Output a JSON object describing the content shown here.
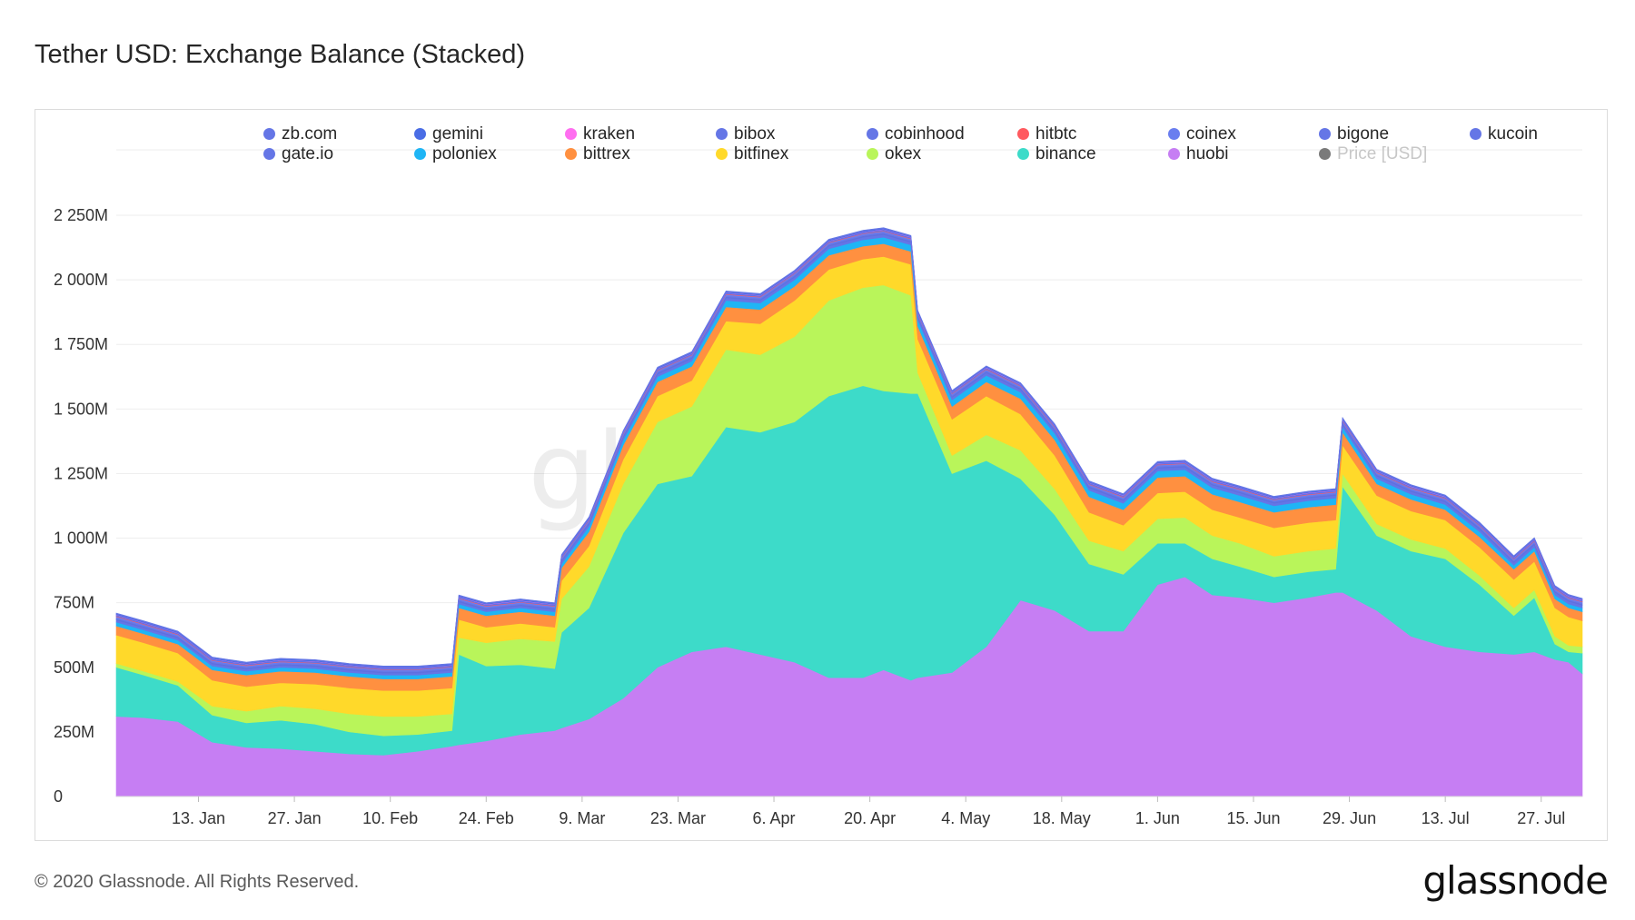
{
  "page": {
    "title": "Tether USD: Exchange Balance (Stacked)",
    "footer": "© 2020 Glassnode. All Rights Reserved.",
    "brand": "glassnode",
    "watermark": "glassnode"
  },
  "legend": [
    {
      "name": "zb.com",
      "color": "#6576e6"
    },
    {
      "name": "gemini",
      "color": "#4a6de5"
    },
    {
      "name": "kraken",
      "color": "#ff6ef0"
    },
    {
      "name": "bibox",
      "color": "#6576e6"
    },
    {
      "name": "cobinhood",
      "color": "#6576e6"
    },
    {
      "name": "hitbtc",
      "color": "#ff5a5f"
    },
    {
      "name": "coinex",
      "color": "#6a7eef"
    },
    {
      "name": "bigone",
      "color": "#6576e6"
    },
    {
      "name": "kucoin",
      "color": "#6576e6"
    },
    {
      "name": "gate.io",
      "color": "#6576e6"
    },
    {
      "name": "poloniex",
      "color": "#1fb5f5"
    },
    {
      "name": "bittrex",
      "color": "#ff9040"
    },
    {
      "name": "bitfinex",
      "color": "#ffd92a"
    },
    {
      "name": "okex",
      "color": "#b9f55a"
    },
    {
      "name": "binance",
      "color": "#3ddbc9"
    },
    {
      "name": "huobi",
      "color": "#c67ef3"
    },
    {
      "name": "Price [USD]",
      "color": "#7a7a7a",
      "muted": true
    }
  ],
  "chart_data": {
    "type": "area",
    "stacked": true,
    "title": "Tether USD: Exchange Balance (Stacked)",
    "ylim": [
      0,
      2250
    ],
    "y_unit": "M",
    "y_ticks": [
      0,
      250,
      500,
      750,
      1000,
      1250,
      1500,
      1750,
      2000,
      2250
    ],
    "y_tick_labels": [
      "0",
      "250M",
      "500M",
      "750M",
      "1 000M",
      "1 250M",
      "1 500M",
      "1 750M",
      "2 000M",
      "2 250M"
    ],
    "x_ticks": [
      {
        "day": 8,
        "label": "13. Jan"
      },
      {
        "day": 22,
        "label": "27. Jan"
      },
      {
        "day": 36,
        "label": "10. Feb"
      },
      {
        "day": 50,
        "label": "24. Feb"
      },
      {
        "day": 64,
        "label": "9. Mar"
      },
      {
        "day": 78,
        "label": "23. Mar"
      },
      {
        "day": 92,
        "label": "6. Apr"
      },
      {
        "day": 106,
        "label": "20. Apr"
      },
      {
        "day": 120,
        "label": "4. May"
      },
      {
        "day": 134,
        "label": "18. May"
      },
      {
        "day": 148,
        "label": "1. Jun"
      },
      {
        "day": 162,
        "label": "15. Jun"
      },
      {
        "day": 176,
        "label": "29. Jun"
      },
      {
        "day": 190,
        "label": "13. Jul"
      },
      {
        "day": 204,
        "label": "27. Jul"
      }
    ],
    "x_range_days": [
      -4,
      210
    ],
    "x": [
      -4,
      0,
      5,
      10,
      15,
      20,
      25,
      30,
      35,
      40,
      45,
      46,
      50,
      55,
      60,
      61,
      65,
      70,
      75,
      80,
      85,
      90,
      95,
      100,
      105,
      108,
      112,
      113,
      118,
      123,
      128,
      133,
      138,
      143,
      148,
      152,
      156,
      160,
      165,
      170,
      174,
      175,
      180,
      185,
      190,
      195,
      200,
      203,
      206,
      208,
      210
    ],
    "series": [
      {
        "name": "huobi",
        "color": "#c67ef3",
        "values": [
          310,
          305,
          290,
          210,
          190,
          185,
          175,
          165,
          160,
          175,
          195,
          200,
          215,
          240,
          255,
          265,
          300,
          380,
          500,
          560,
          580,
          550,
          520,
          460,
          460,
          490,
          450,
          460,
          480,
          580,
          760,
          720,
          640,
          640,
          820,
          850,
          780,
          770,
          750,
          770,
          790,
          790,
          720,
          620,
          580,
          560,
          550,
          560,
          530,
          520,
          475
        ]
      },
      {
        "name": "binance",
        "color": "#3ddbc9",
        "values": [
          190,
          165,
          140,
          105,
          95,
          110,
          105,
          85,
          75,
          65,
          60,
          350,
          290,
          270,
          240,
          370,
          430,
          640,
          710,
          680,
          850,
          860,
          930,
          1090,
          1130,
          1080,
          1110,
          1100,
          770,
          720,
          470,
          370,
          260,
          220,
          160,
          130,
          140,
          120,
          100,
          100,
          90,
          410,
          290,
          330,
          340,
          260,
          150,
          210,
          60,
          40,
          80
        ]
      },
      {
        "name": "okex",
        "color": "#b9f55a",
        "values": [
          15,
          15,
          15,
          35,
          45,
          55,
          60,
          70,
          75,
          70,
          65,
          65,
          90,
          100,
          105,
          130,
          160,
          190,
          240,
          270,
          300,
          300,
          330,
          370,
          380,
          410,
          380,
          80,
          70,
          100,
          110,
          100,
          90,
          90,
          95,
          100,
          90,
          90,
          80,
          80,
          80,
          50,
          45,
          45,
          40,
          35,
          30,
          30,
          30,
          25,
          25
        ]
      },
      {
        "name": "bitfinex",
        "color": "#ffd92a",
        "values": [
          110,
          110,
          110,
          100,
          95,
          90,
          95,
          100,
          100,
          100,
          100,
          70,
          60,
          60,
          55,
          70,
          80,
          95,
          100,
          100,
          110,
          120,
          140,
          120,
          110,
          110,
          120,
          130,
          140,
          150,
          140,
          130,
          110,
          100,
          100,
          100,
          100,
          100,
          110,
          110,
          110,
          110,
          110,
          110,
          110,
          110,
          110,
          110,
          110,
          110,
          100
        ]
      },
      {
        "name": "bittrex",
        "color": "#ff9040",
        "values": [
          35,
          35,
          35,
          40,
          45,
          45,
          45,
          45,
          45,
          45,
          45,
          45,
          45,
          45,
          45,
          50,
          55,
          55,
          55,
          55,
          55,
          55,
          55,
          55,
          50,
          50,
          50,
          50,
          50,
          55,
          60,
          60,
          60,
          60,
          60,
          60,
          60,
          60,
          60,
          60,
          60,
          50,
          45,
          45,
          40,
          40,
          40,
          40,
          35,
          35,
          35
        ]
      },
      {
        "name": "poloniex",
        "color": "#1fb5f5",
        "values": [
          15,
          15,
          15,
          15,
          15,
          15,
          15,
          15,
          15,
          15,
          15,
          15,
          15,
          15,
          15,
          15,
          20,
          20,
          20,
          20,
          25,
          25,
          25,
          25,
          25,
          25,
          25,
          25,
          25,
          25,
          25,
          25,
          25,
          25,
          25,
          25,
          25,
          25,
          25,
          25,
          25,
          20,
          20,
          20,
          20,
          20,
          15,
          15,
          15,
          15,
          15
        ]
      },
      {
        "name": "gate.io",
        "color": "#6576e6",
        "values": [
          8,
          8,
          8,
          8,
          8,
          8,
          8,
          8,
          8,
          8,
          8,
          8,
          8,
          8,
          8,
          10,
          10,
          10,
          10,
          10,
          10,
          10,
          10,
          10,
          10,
          10,
          10,
          10,
          10,
          10,
          10,
          10,
          10,
          10,
          10,
          10,
          10,
          10,
          10,
          10,
          10,
          10,
          10,
          10,
          10,
          10,
          10,
          10,
          10,
          10,
          10
        ]
      },
      {
        "name": "kucoin",
        "color": "#5e70e0",
        "values": [
          5,
          5,
          5,
          5,
          5,
          5,
          5,
          5,
          5,
          5,
          5,
          5,
          5,
          5,
          5,
          5,
          5,
          5,
          5,
          5,
          5,
          5,
          5,
          5,
          5,
          5,
          5,
          5,
          5,
          5,
          5,
          5,
          5,
          5,
          5,
          5,
          5,
          5,
          5,
          5,
          5,
          5,
          5,
          5,
          5,
          5,
          5,
          5,
          5,
          5,
          5
        ]
      },
      {
        "name": "bigone",
        "color": "#6878e6",
        "values": [
          4,
          4,
          4,
          4,
          4,
          4,
          4,
          4,
          4,
          4,
          4,
          4,
          4,
          4,
          4,
          4,
          4,
          4,
          4,
          4,
          4,
          4,
          4,
          4,
          4,
          4,
          4,
          4,
          4,
          4,
          4,
          4,
          4,
          4,
          4,
          4,
          4,
          4,
          4,
          4,
          4,
          4,
          4,
          4,
          4,
          4,
          4,
          4,
          4,
          4,
          4
        ]
      },
      {
        "name": "coinex",
        "color": "#6a7eef",
        "values": [
          4,
          4,
          4,
          4,
          4,
          4,
          4,
          4,
          4,
          4,
          4,
          4,
          4,
          4,
          4,
          4,
          4,
          4,
          4,
          4,
          4,
          4,
          4,
          4,
          4,
          4,
          4,
          4,
          4,
          4,
          4,
          4,
          4,
          4,
          4,
          4,
          4,
          4,
          4,
          4,
          4,
          4,
          4,
          4,
          4,
          4,
          4,
          4,
          4,
          4,
          4
        ]
      },
      {
        "name": "hitbtc",
        "color": "#ff5a5f",
        "values": [
          2,
          2,
          2,
          2,
          2,
          2,
          2,
          2,
          2,
          2,
          2,
          2,
          2,
          2,
          2,
          2,
          2,
          2,
          2,
          2,
          2,
          2,
          2,
          2,
          2,
          2,
          2,
          2,
          2,
          2,
          2,
          2,
          2,
          2,
          2,
          2,
          2,
          2,
          2,
          2,
          2,
          2,
          2,
          2,
          2,
          2,
          2,
          2,
          2,
          2,
          2
        ]
      },
      {
        "name": "cobinhood",
        "color": "#6576e6",
        "values": [
          2,
          2,
          2,
          2,
          2,
          2,
          2,
          2,
          2,
          2,
          2,
          2,
          2,
          2,
          2,
          2,
          2,
          2,
          2,
          2,
          2,
          2,
          2,
          2,
          2,
          2,
          2,
          2,
          2,
          2,
          2,
          2,
          2,
          2,
          2,
          2,
          2,
          2,
          2,
          2,
          2,
          2,
          2,
          2,
          2,
          2,
          2,
          2,
          2,
          2,
          2
        ]
      },
      {
        "name": "bibox",
        "color": "#5f72e3",
        "values": [
          3,
          3,
          3,
          3,
          3,
          3,
          3,
          3,
          3,
          3,
          3,
          3,
          3,
          3,
          3,
          3,
          3,
          3,
          3,
          3,
          3,
          3,
          3,
          3,
          3,
          3,
          3,
          3,
          3,
          3,
          3,
          3,
          3,
          3,
          3,
          3,
          3,
          3,
          3,
          3,
          3,
          3,
          3,
          3,
          3,
          3,
          3,
          3,
          3,
          3,
          3
        ]
      },
      {
        "name": "kraken",
        "color": "#ff6ef0",
        "values": [
          1,
          1,
          1,
          1,
          1,
          1,
          1,
          1,
          1,
          1,
          1,
          1,
          1,
          1,
          1,
          1,
          1,
          1,
          1,
          1,
          1,
          1,
          1,
          1,
          1,
          1,
          1,
          1,
          1,
          1,
          1,
          1,
          1,
          1,
          1,
          1,
          1,
          1,
          1,
          1,
          1,
          1,
          1,
          1,
          1,
          1,
          1,
          1,
          1,
          1,
          1
        ]
      },
      {
        "name": "gemini",
        "color": "#4a6de5",
        "values": [
          3,
          3,
          3,
          3,
          3,
          3,
          3,
          3,
          3,
          3,
          3,
          3,
          3,
          3,
          3,
          3,
          3,
          3,
          3,
          3,
          3,
          3,
          3,
          3,
          3,
          3,
          3,
          3,
          3,
          3,
          3,
          3,
          3,
          3,
          3,
          3,
          3,
          3,
          3,
          3,
          3,
          3,
          3,
          3,
          3,
          3,
          3,
          3,
          3,
          3,
          3
        ]
      },
      {
        "name": "zb.com",
        "color": "#6576e6",
        "values": [
          3,
          3,
          3,
          3,
          3,
          3,
          3,
          3,
          3,
          3,
          3,
          3,
          3,
          3,
          3,
          3,
          3,
          3,
          3,
          3,
          3,
          3,
          3,
          3,
          3,
          3,
          3,
          3,
          3,
          3,
          3,
          3,
          3,
          3,
          3,
          3,
          3,
          3,
          3,
          3,
          3,
          3,
          3,
          3,
          3,
          3,
          3,
          3,
          3,
          3,
          3
        ]
      }
    ]
  }
}
